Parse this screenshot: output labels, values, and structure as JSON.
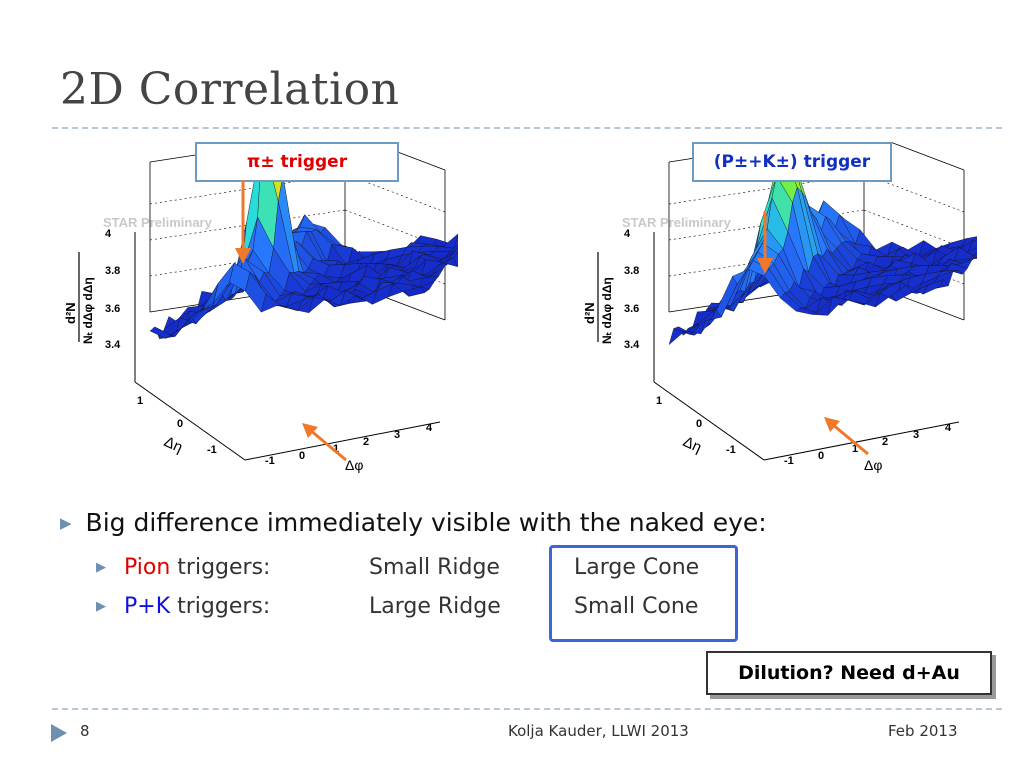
{
  "slide": {
    "title": "2D Correlation",
    "page_number": "8",
    "footer_center": "Kolja Kauder, LLWI 2013",
    "footer_right": "Feb 2013"
  },
  "panels": [
    {
      "trigger_label": "π± trigger",
      "trigger_color": "#e00000",
      "watermark": "STAR Preliminary",
      "z_ticks": [
        "4",
        "3.8",
        "3.6",
        "3.4"
      ],
      "eta_ticks": [
        "1",
        "0",
        "-1"
      ],
      "phi_ticks": [
        "-1",
        "0",
        "1",
        "2",
        "3",
        "4"
      ],
      "eta_label": "Δη",
      "phi_label": "Δφ",
      "z_label_top": "d²N",
      "z_label_bottom": "Nₜ dΔφ dΔη"
    },
    {
      "trigger_label": "(P±+K±) trigger",
      "trigger_color": "#1030c0",
      "watermark": "STAR Preliminary",
      "z_ticks": [
        "4",
        "3.8",
        "3.6",
        "3.4"
      ],
      "eta_ticks": [
        "1",
        "0",
        "-1"
      ],
      "phi_ticks": [
        "-1",
        "0",
        "1",
        "2",
        "3",
        "4"
      ],
      "eta_label": "Δη",
      "phi_label": "Δφ",
      "z_label_top": "d²N",
      "z_label_bottom": "Nₜ dΔφ dΔη"
    }
  ],
  "bullets": {
    "main": "Big difference immediately visible with the naked eye:",
    "rows": [
      {
        "particle": "Pion",
        "particle_color": "#e00000",
        "rest": " triggers:",
        "ridge": "Small Ridge",
        "cone": "Large Cone"
      },
      {
        "particle": "P+K",
        "particle_color": "#1010e0",
        "rest": " triggers:",
        "ridge": "Large Ridge",
        "cone": "Small Cone"
      }
    ]
  },
  "callout": {
    "text": "Dilution? Need d+Au"
  },
  "colors": {
    "arrow": "#f0782a",
    "box_border": "#6b9bc2",
    "highlight_box": "#3a66d6",
    "rule": "#b7c6d8"
  },
  "icons": {
    "bullet": "triangle-right-icon",
    "footer": "play-triangle-icon"
  }
}
